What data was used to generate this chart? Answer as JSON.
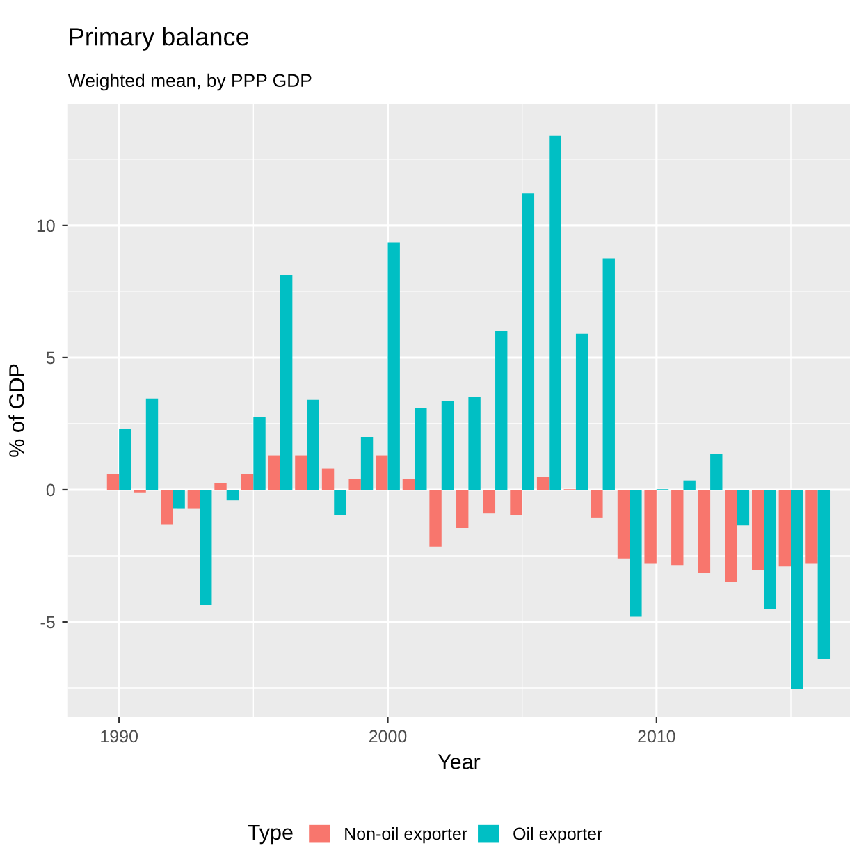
{
  "chart_data": {
    "type": "bar",
    "title": "Primary balance",
    "subtitle": "Weighted mean, by PPP GDP",
    "xlabel": "Year",
    "ylabel": "% of GDP",
    "legend_title": "Type",
    "legend": "bottom",
    "grid": true,
    "x": [
      1990,
      1991,
      1992,
      1993,
      1994,
      1995,
      1996,
      1997,
      1998,
      1999,
      2000,
      2001,
      2002,
      2003,
      2004,
      2005,
      2006,
      2007,
      2008,
      2009,
      2010,
      2011,
      2012,
      2013,
      2014,
      2015,
      2016
    ],
    "series": [
      {
        "name": "Non-oil exporter",
        "color": "#f8766d",
        "values": [
          0.6,
          -0.1,
          -1.3,
          -0.7,
          0.25,
          0.6,
          1.3,
          1.3,
          0.8,
          0.4,
          1.3,
          0.4,
          -2.15,
          -1.45,
          -0.9,
          -0.95,
          0.5,
          0.02,
          -1.05,
          -2.6,
          -2.8,
          -2.85,
          -3.15,
          -3.5,
          -3.05,
          -2.9,
          -2.8
        ]
      },
      {
        "name": "Oil exporter",
        "color": "#00bfc4",
        "values": [
          2.3,
          3.45,
          -0.7,
          -4.35,
          -0.4,
          2.75,
          8.1,
          3.4,
          -0.95,
          2.0,
          9.35,
          3.1,
          3.35,
          3.5,
          6.0,
          11.2,
          13.4,
          5.9,
          8.75,
          -4.8,
          0.02,
          0.35,
          1.35,
          -1.35,
          -4.5,
          -7.55,
          -6.4
        ]
      }
    ],
    "xlim": [
      1988.1,
      2017.2
    ],
    "xticks": [
      1990,
      2000,
      2010
    ],
    "ylim": [
      -8.6,
      14.6
    ],
    "yticks": [
      -5,
      0,
      5,
      10
    ]
  }
}
